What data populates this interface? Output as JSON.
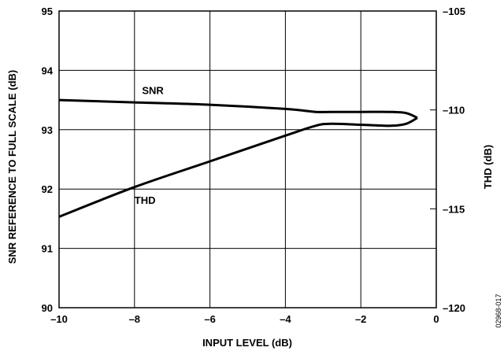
{
  "chart_data": {
    "type": "line",
    "title": "",
    "xlabel": "INPUT LEVEL (dB)",
    "ylabel_left": "SNR REFERENCE TO FULL SCALE (dB)",
    "ylabel_right": "THD (dB)",
    "xlim": [
      -10,
      0
    ],
    "ylim_left": [
      90,
      95
    ],
    "ylim_right": [
      -120,
      -105
    ],
    "x_ticks": [
      -10,
      -8,
      -6,
      -4,
      -2,
      0
    ],
    "x_tick_labels": [
      "–10",
      "–8",
      "–6",
      "–4",
      "–2",
      "0"
    ],
    "y_left_ticks": [
      90,
      91,
      92,
      93,
      94,
      95
    ],
    "y_left_tick_labels": [
      "90",
      "91",
      "92",
      "93",
      "94",
      "95"
    ],
    "y_right_ticks": [
      -120,
      -115,
      -110,
      -105
    ],
    "y_right_tick_labels": [
      "–120",
      "–115",
      "–110",
      "–105"
    ],
    "grid": true,
    "legend": "none",
    "series": [
      {
        "name": "SNR",
        "axis": "left",
        "x": [
          -10,
          -8,
          -6,
          -4,
          -3.2,
          -2.8,
          -2,
          -1.2,
          -0.8,
          -0.5
        ],
        "values": [
          93.5,
          93.46,
          93.42,
          93.35,
          93.3,
          93.3,
          93.3,
          93.3,
          93.28,
          93.2
        ]
      },
      {
        "name": "THD",
        "axis": "right",
        "x": [
          -10,
          -8,
          -6,
          -4,
          -3.2,
          -2.8,
          -2,
          -1.2,
          -0.8,
          -0.5
        ],
        "values": [
          -115.4,
          -113.9,
          -112.6,
          -111.3,
          -110.8,
          -110.7,
          -110.75,
          -110.8,
          -110.7,
          -110.4
        ]
      }
    ],
    "series_labels": [
      {
        "text": "SNR",
        "x": -7.8,
        "y_left": 93.6
      },
      {
        "text": "THD",
        "x": -8.0,
        "y_left": 91.75
      }
    ],
    "figure_code": "02968-017"
  }
}
